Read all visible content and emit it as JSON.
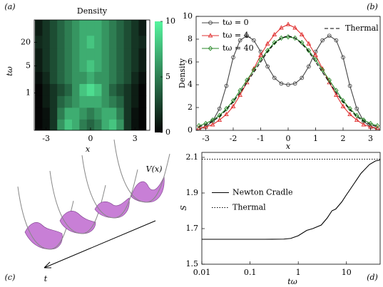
{
  "panel_labels": [
    "(a)",
    "(b)",
    "(c)",
    "(d)"
  ],
  "diagram": {
    "potential_label": "V(x)",
    "time_label": "t"
  },
  "chart_data": [
    {
      "type": "heatmap",
      "title": "Density",
      "xlabel": "x",
      "ylabel": "tω",
      "x": [
        -3.5,
        -3,
        -2.5,
        -2,
        -1.5,
        -1,
        -0.5,
        0,
        0.5,
        1,
        1.5,
        2,
        2.5,
        3,
        3.5
      ],
      "y": [
        0.15,
        0.3,
        0.6,
        1.2,
        2.5,
        5,
        10,
        20,
        45
      ],
      "z": [
        [
          0,
          0.5,
          2,
          6,
          8,
          7,
          5,
          4,
          5,
          7,
          8,
          6,
          2,
          0.5,
          0
        ],
        [
          0,
          0.5,
          2,
          5,
          7,
          7,
          6,
          5,
          6,
          7,
          7,
          5,
          2,
          0.5,
          0
        ],
        [
          0,
          1,
          2,
          4,
          5,
          6,
          7,
          7,
          7,
          6,
          5,
          4,
          2,
          1,
          0
        ],
        [
          0,
          1,
          2,
          3,
          4,
          6,
          8,
          9,
          8,
          6,
          4,
          3,
          2,
          1,
          0
        ],
        [
          0.5,
          1.5,
          3,
          4,
          5,
          6,
          6,
          7,
          6,
          6,
          5,
          4,
          3,
          1.5,
          0.5
        ],
        [
          1,
          2,
          3,
          4,
          5,
          6,
          7,
          8,
          7,
          6,
          5,
          4,
          3,
          2,
          1
        ],
        [
          1,
          2,
          3,
          4,
          5,
          6,
          7,
          7,
          7,
          6,
          5,
          4,
          3,
          2,
          1
        ],
        [
          1.5,
          2,
          3,
          4,
          5,
          6,
          7,
          8,
          7,
          6,
          5,
          4,
          3,
          2,
          1.5
        ],
        [
          1,
          2,
          3,
          4,
          5,
          6,
          7,
          7,
          7,
          6,
          5,
          4,
          3,
          2,
          1
        ]
      ],
      "xlim": [
        -3.8,
        4.0
      ],
      "xticks": [
        -3,
        0,
        3
      ],
      "ylim": [
        0.11,
        75
      ],
      "yticks": [
        1,
        5,
        20
      ],
      "yscale": "log",
      "colorbar": {
        "lim": [
          0,
          10
        ],
        "ticks": [
          0,
          5,
          10
        ],
        "colors": [
          "#050505",
          "#56f59f"
        ]
      }
    },
    {
      "type": "line",
      "xlabel": "x",
      "ylabel": "Density",
      "x": [
        -3.25,
        -3,
        -2.75,
        -2.5,
        -2.25,
        -2,
        -1.75,
        -1.5,
        -1.25,
        -1,
        -0.75,
        -0.5,
        -0.25,
        0,
        0.25,
        0.5,
        0.75,
        1,
        1.25,
        1.5,
        1.75,
        2,
        2.25,
        2.5,
        2.75,
        3,
        3.25
      ],
      "series": [
        {
          "name": "tω = 0",
          "color": "#444444",
          "marker": "circle",
          "values": [
            0.1,
            0.3,
            0.8,
            1.9,
            3.9,
            6.4,
            7.9,
            8.3,
            7.9,
            6.9,
            5.6,
            4.6,
            4.1,
            4.0,
            4.1,
            4.6,
            5.6,
            6.9,
            7.9,
            8.3,
            7.9,
            6.4,
            3.9,
            1.9,
            0.8,
            0.3,
            0.1
          ]
        },
        {
          "name": "tω = 4.",
          "color": "#e03030",
          "marker": "triangle",
          "values": [
            0.2,
            0.3,
            0.5,
            0.9,
            1.4,
            2.1,
            3.1,
            4.2,
            5.4,
            6.6,
            7.6,
            8.4,
            9.0,
            9.3,
            9.0,
            8.4,
            7.6,
            6.6,
            5.4,
            4.2,
            3.1,
            2.1,
            1.4,
            0.9,
            0.5,
            0.3,
            0.2
          ]
        },
        {
          "name": "tω = 40",
          "color": "#2a8a2a",
          "marker": "diamond",
          "values": [
            0.4,
            0.6,
            0.9,
            1.3,
            1.9,
            2.6,
            3.5,
            4.4,
            5.3,
            6.2,
            7.0,
            7.7,
            8.1,
            8.2,
            8.1,
            7.7,
            7.0,
            6.2,
            5.3,
            4.4,
            3.5,
            2.6,
            1.9,
            1.3,
            0.9,
            0.6,
            0.4
          ]
        },
        {
          "name": "Thermal",
          "color": "#000000",
          "linestyle": "dashed",
          "legend_loc": "upper right",
          "values": [
            0.3,
            0.5,
            0.8,
            1.2,
            1.8,
            2.5,
            3.3,
            4.2,
            5.1,
            6.0,
            6.9,
            7.6,
            8.1,
            8.3,
            8.1,
            7.6,
            6.9,
            6.0,
            5.1,
            4.2,
            3.3,
            2.5,
            1.8,
            1.2,
            0.8,
            0.5,
            0.3
          ]
        }
      ],
      "xlim": [
        -3.35,
        3.35
      ],
      "xticks": [
        -3,
        -2,
        -1,
        0,
        1,
        2,
        3
      ],
      "ylim": [
        0,
        10
      ],
      "yticks": [
        0,
        2,
        4,
        6,
        8,
        10
      ],
      "legend": "upper left"
    },
    {
      "type": "line",
      "xlabel": "tω",
      "ylabel": "S",
      "xscale": "log",
      "series": [
        {
          "name": "Newton Cradle",
          "color": "#000000",
          "linestyle": "solid",
          "x": [
            0.01,
            0.05,
            0.2,
            0.5,
            0.7,
            1,
            1.5,
            2,
            3,
            4,
            5,
            6,
            8,
            10,
            15,
            20,
            30,
            40,
            50
          ],
          "values": [
            1.64,
            1.64,
            1.64,
            1.641,
            1.645,
            1.66,
            1.69,
            1.7,
            1.72,
            1.76,
            1.8,
            1.81,
            1.85,
            1.89,
            1.96,
            2.01,
            2.06,
            2.08,
            2.085
          ]
        },
        {
          "name": "Thermal",
          "color": "#000000",
          "linestyle": "dotted",
          "x": [
            0.01,
            50
          ],
          "values": [
            2.09,
            2.09
          ]
        }
      ],
      "xlim": [
        0.01,
        50
      ],
      "xticks": [
        0.01,
        0.1,
        1,
        10
      ],
      "ylim": [
        1.5,
        2.128
      ],
      "yticks": [
        1.5,
        1.7,
        1.9,
        2.1
      ],
      "legend": "center left"
    }
  ]
}
